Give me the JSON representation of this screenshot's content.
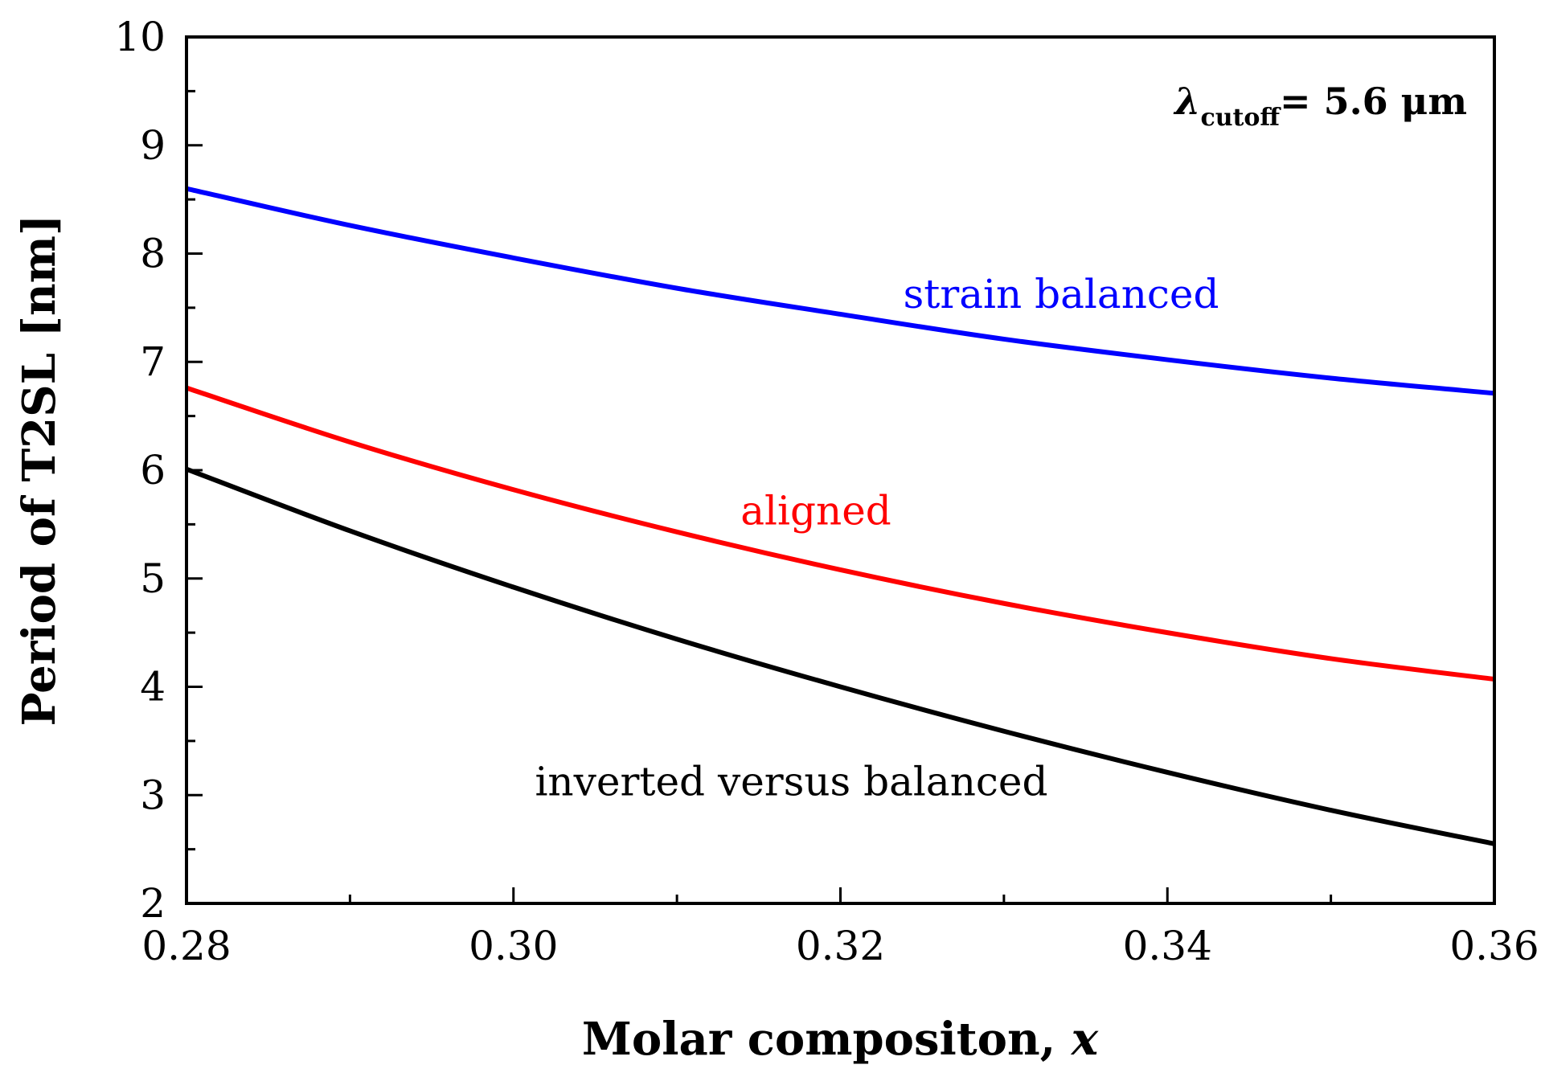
{
  "chart_data": {
    "type": "line",
    "title": "",
    "xlabel": "Molar compositon, ",
    "xlabel_var": "x",
    "ylabel": "Period of T2SL [nm]",
    "xlim": [
      0.28,
      0.36
    ],
    "ylim": [
      2,
      10
    ],
    "x_ticks": [
      0.28,
      0.3,
      0.32,
      0.34,
      0.36
    ],
    "x_tick_labels": [
      "0.28",
      "0.30",
      "0.32",
      "0.34",
      "0.36"
    ],
    "y_ticks": [
      2,
      3,
      4,
      5,
      6,
      7,
      8,
      9,
      10
    ],
    "y_tick_labels": [
      "2",
      "3",
      "4",
      "5",
      "6",
      "7",
      "8",
      "9",
      "10"
    ],
    "grid": false,
    "annotation": {
      "lambda": "λ",
      "sub": "cutoff",
      "value": "= 5.6 μm"
    },
    "x": [
      0.28,
      0.29,
      0.3,
      0.31,
      0.32,
      0.33,
      0.34,
      0.35,
      0.36
    ],
    "series": [
      {
        "name": "strain balanced",
        "color": "#0000ff",
        "values": [
          8.6,
          8.26,
          7.96,
          7.68,
          7.44,
          7.21,
          7.02,
          6.85,
          6.71
        ]
      },
      {
        "name": "aligned",
        "color": "#ff0000",
        "values": [
          6.76,
          6.26,
          5.82,
          5.43,
          5.08,
          4.77,
          4.5,
          4.26,
          4.07
        ]
      },
      {
        "name": "inverted versus balanced",
        "color": "#000000",
        "values": [
          6.01,
          5.44,
          4.92,
          4.44,
          4.0,
          3.59,
          3.21,
          2.86,
          2.55
        ]
      }
    ],
    "series_label_positions": [
      {
        "x": 0.3335,
        "y": 7.5
      },
      {
        "x": 0.3185,
        "y": 5.5
      },
      {
        "x": 0.317,
        "y": 3.0
      }
    ]
  }
}
